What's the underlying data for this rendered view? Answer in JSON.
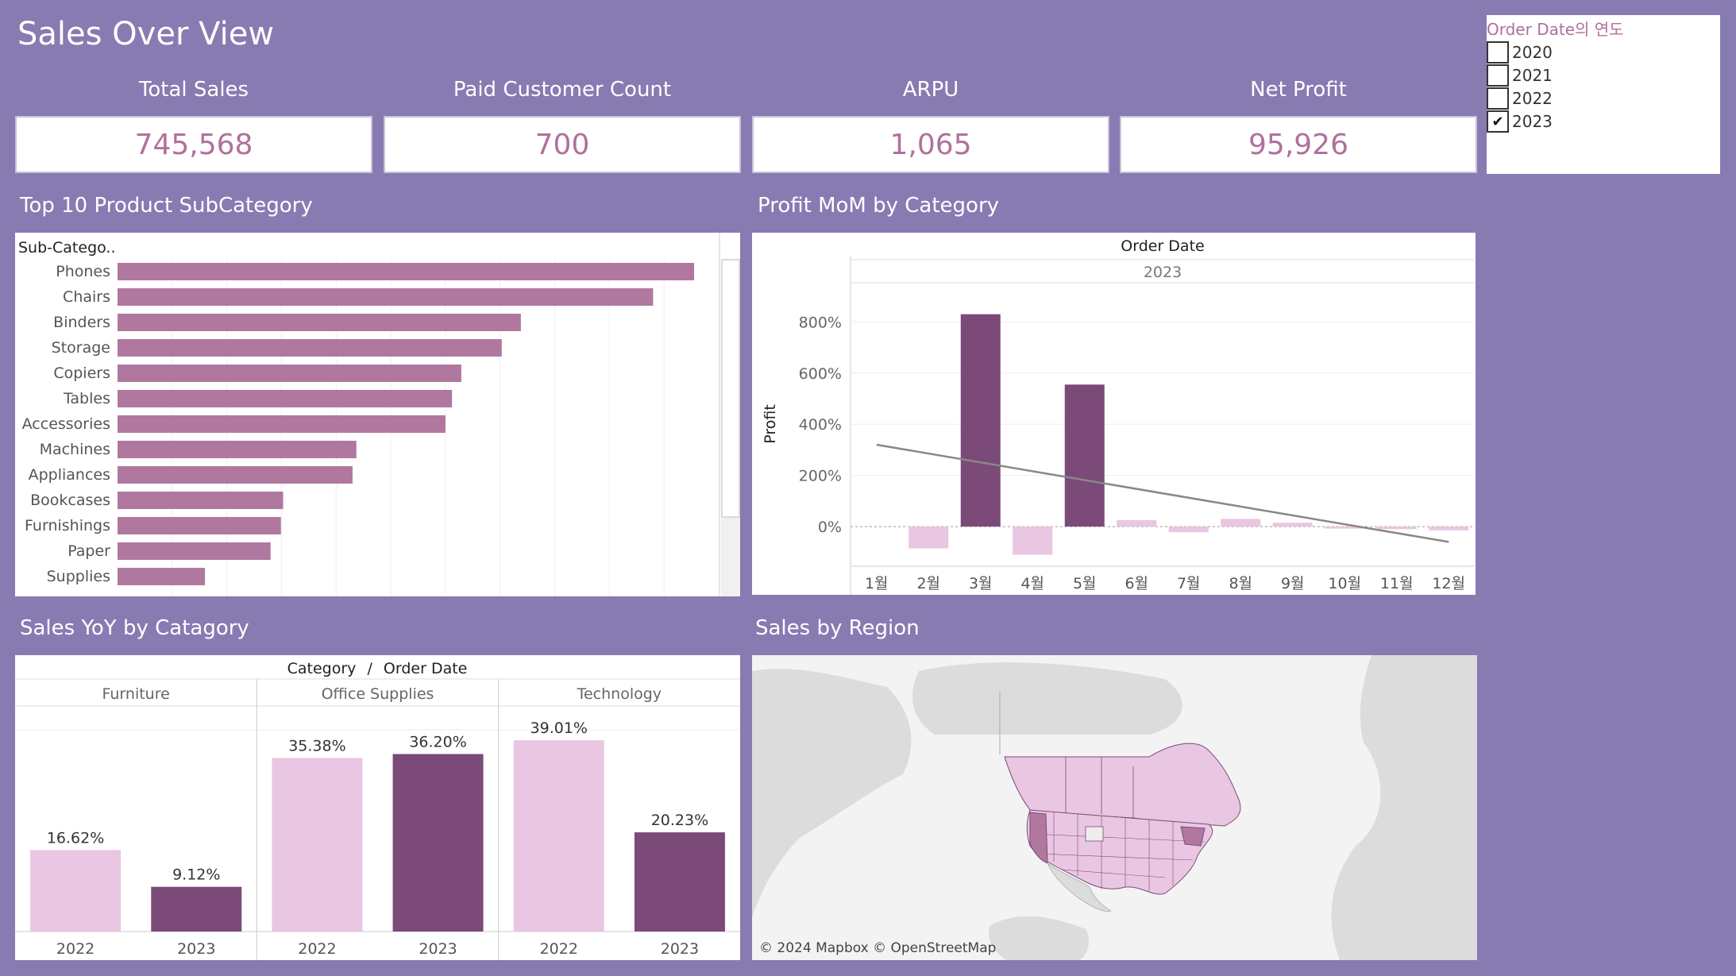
{
  "dashboard": {
    "title": "Sales Over View"
  },
  "kpis": [
    {
      "label": "Total Sales",
      "value": "745,568"
    },
    {
      "label": "Paid Customer Count",
      "value": "700"
    },
    {
      "label": "ARPU",
      "value": "1,065"
    },
    {
      "label": "Net Profit",
      "value": "95,926"
    }
  ],
  "filter": {
    "title": "Order Date의 연도",
    "options": [
      {
        "label": "2020",
        "checked": false,
        "mark": ""
      },
      {
        "label": "2021",
        "checked": false,
        "mark": ""
      },
      {
        "label": "2022",
        "checked": false,
        "mark": ""
      },
      {
        "label": "2023",
        "checked": true,
        "mark": "✔"
      }
    ]
  },
  "sections": {
    "top10": "Top 10 Product SubCategory",
    "profit_mom": "Profit MoM by Category",
    "sales_yoy": "Sales YoY by Catagory",
    "sales_region": "Sales by Region"
  },
  "colors": {
    "bar_pink": "#b0789f",
    "dark_purple": "#7b4a78",
    "light_pink": "#e9c6e2",
    "kpi_value": "#b0709c",
    "background": "#877bb2"
  },
  "chart_data": [
    {
      "id": "top10",
      "type": "bar",
      "orientation": "horizontal",
      "header": "Sub-Catego..",
      "categories": [
        "Phones",
        "Chairs",
        "Binders",
        "Storage",
        "Copiers",
        "Tables",
        "Accessories",
        "Machines",
        "Appliances",
        "Bookcases",
        "Furnishings",
        "Paper",
        "Supplies"
      ],
      "values": [
        105500,
        98000,
        73800,
        70300,
        62900,
        61200,
        60000,
        43700,
        43000,
        30300,
        29900,
        28000,
        16000
      ],
      "xlim": [
        0,
        110000
      ],
      "grid": true
    },
    {
      "id": "profit_mom",
      "type": "bar",
      "header": "Order Date",
      "year": "2023",
      "ylabel": "Profit",
      "categories": [
        "1월",
        "2월",
        "3월",
        "4월",
        "5월",
        "6월",
        "7월",
        "8월",
        "9월",
        "10월",
        "11월",
        "12월"
      ],
      "values": [
        0,
        -85,
        830,
        -110,
        555,
        25,
        -22,
        30,
        15,
        -8,
        -10,
        -15
      ],
      "yticks": [
        "800%",
        "600%",
        "400%",
        "200%",
        "0%"
      ],
      "ytick_values": [
        800,
        600,
        400,
        200,
        0
      ],
      "ylim": [
        -155,
        950
      ],
      "trend_line": {
        "start": 320,
        "end": -60
      },
      "grid": true
    },
    {
      "id": "sales_yoy",
      "type": "bar",
      "header_left": "Category",
      "header_sep": "/",
      "header_right": "Order Date",
      "groups": [
        {
          "name": "Furniture",
          "bars": [
            {
              "x": "2022",
              "value": 16.62,
              "label": "16.62%"
            },
            {
              "x": "2023",
              "value": 9.12,
              "label": "9.12%"
            }
          ]
        },
        {
          "name": "Office Supplies",
          "bars": [
            {
              "x": "2022",
              "value": 35.38,
              "label": "35.38%"
            },
            {
              "x": "2023",
              "value": 36.2,
              "label": "36.20%"
            }
          ]
        },
        {
          "name": "Technology",
          "bars": [
            {
              "x": "2022",
              "value": 39.01,
              "label": "39.01%"
            },
            {
              "x": "2023",
              "value": 20.23,
              "label": "20.23%"
            }
          ]
        }
      ],
      "ylim": [
        0,
        46
      ]
    },
    {
      "id": "sales_region",
      "type": "map",
      "attribution": "© 2024 Mapbox © OpenStreetMap"
    }
  ]
}
